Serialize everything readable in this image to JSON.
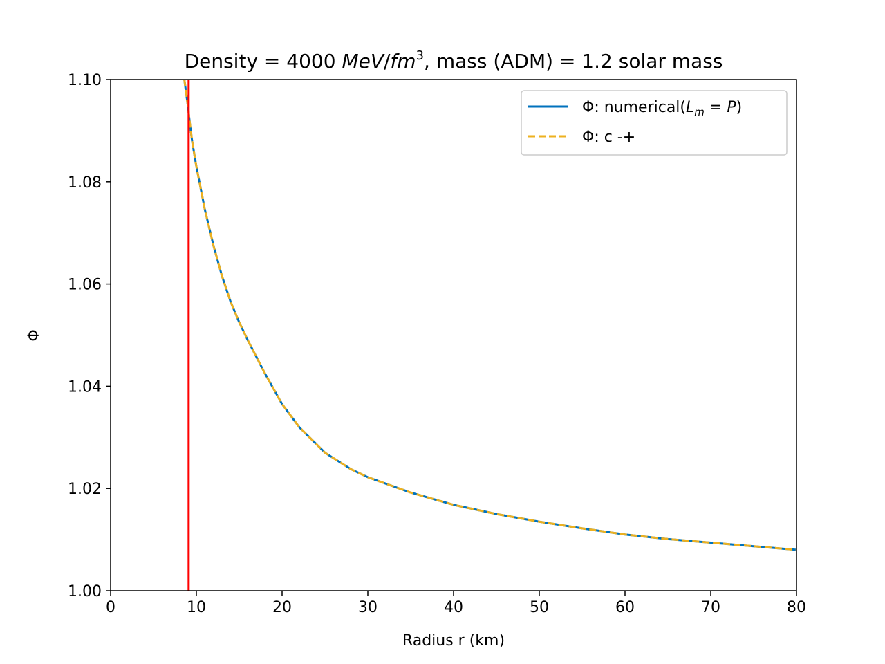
{
  "chart_data": {
    "type": "line",
    "title_text": "Density = 4000 ",
    "title_unit_italic_1": "MeV",
    "title_unit_sep": "/",
    "title_unit_italic_2": "fm",
    "title_unit_sup": "3",
    "title_suffix": ", mass (ADM) = 1.2 solar mass",
    "xlabel": "Radius r (km)",
    "ylabel": "Φ",
    "xlim": [
      0,
      80
    ],
    "ylim": [
      1.0,
      1.1
    ],
    "xticks": [
      "0",
      "10",
      "20",
      "30",
      "40",
      "50",
      "60",
      "70",
      "80"
    ],
    "yticks": [
      "1.00",
      "1.02",
      "1.04",
      "1.06",
      "1.08",
      "1.10"
    ],
    "legend_position": "top-right",
    "series": [
      {
        "name_prefix": "Φ: numerical(",
        "name_math_L": "L",
        "name_math_sub": "m",
        "name_math_rest": " = P",
        "name_suffix": ")",
        "style": "solid",
        "color": "#0072bd",
        "x": [
          8.6,
          9.0,
          9.2,
          9.5,
          10,
          11,
          12,
          13,
          14,
          15,
          16,
          18,
          20,
          22,
          25,
          28,
          30,
          35,
          40,
          45,
          50,
          55,
          60,
          65,
          70,
          75,
          80
        ],
        "y": [
          1.1,
          1.095,
          1.092,
          1.088,
          1.083,
          1.0745,
          1.0675,
          1.0615,
          1.0565,
          1.0525,
          1.049,
          1.0425,
          1.0365,
          1.032,
          1.027,
          1.0238,
          1.0222,
          1.0192,
          1.0168,
          1.015,
          1.0135,
          1.0122,
          1.011,
          1.0101,
          1.0094,
          1.0087,
          1.008
        ]
      },
      {
        "name": "Φ: c -+",
        "style": "dashed",
        "color": "#edb120",
        "x": [
          8.6,
          9.0,
          9.2,
          9.5,
          10,
          11,
          12,
          13,
          14,
          15,
          16,
          18,
          20,
          22,
          25,
          28,
          30,
          35,
          40,
          45,
          50,
          55,
          60,
          65,
          70,
          75,
          80
        ],
        "y": [
          1.1,
          1.095,
          1.092,
          1.088,
          1.083,
          1.0745,
          1.0675,
          1.0615,
          1.0565,
          1.0525,
          1.049,
          1.0425,
          1.0365,
          1.032,
          1.027,
          1.0238,
          1.0222,
          1.0192,
          1.0168,
          1.015,
          1.0135,
          1.0122,
          1.011,
          1.0101,
          1.0094,
          1.0087,
          1.008
        ]
      }
    ],
    "vline": {
      "x": 9.1,
      "color": "#ff0000"
    },
    "grid": false
  }
}
